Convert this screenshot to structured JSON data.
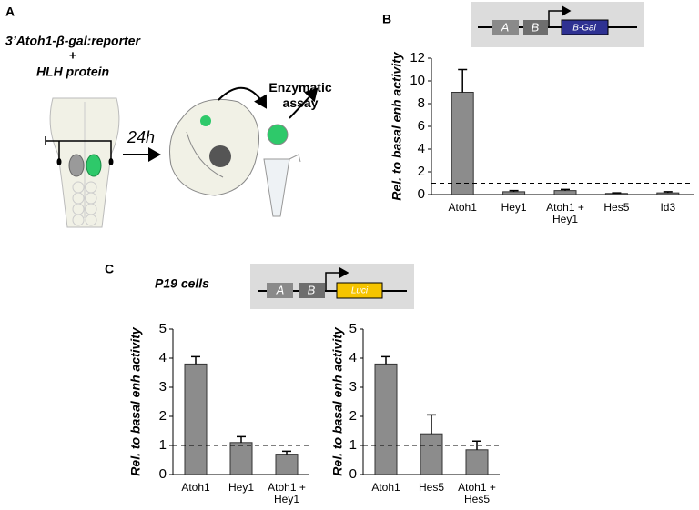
{
  "figure": {
    "panel_a": "A",
    "reporter": "3’Atoh1-β-gal:reporter",
    "plus": "+",
    "protein": "HLH protein",
    "time": "24h",
    "assay": "Enzymatic\nassay",
    "panel_b": "B",
    "panel_c": "C",
    "cells": "P19 cells",
    "construct_b": {
      "a": "A",
      "b": "B",
      "gene": "B-Gal"
    },
    "construct_c": {
      "a": "A",
      "b": "B",
      "gene": "Luci"
    }
  },
  "chart_data": [
    {
      "type": "bar",
      "y_label": "Rel.  to basal enh activity",
      "categories": [
        "Atoh1",
        "Hey1",
        "Atoh1 +\nHey1",
        "Hes5",
        "Id3"
      ],
      "values": [
        9,
        0.25,
        0.35,
        0.1,
        0.15
      ],
      "errors": [
        2,
        0.1,
        0.1,
        0.05,
        0.1
      ],
      "color": "#8c8c8c",
      "ylim": [
        0,
        12
      ],
      "yticks": [
        0,
        2,
        4,
        6,
        8,
        10,
        12
      ],
      "hline": 1
    },
    {
      "type": "bar",
      "y_label": "Rel.  to basal enh activity",
      "categories": [
        "Atoh1",
        "Hey1",
        "Atoh1 +\nHey1"
      ],
      "values": [
        3.8,
        1.1,
        0.7
      ],
      "errors": [
        0.25,
        0.2,
        0.1
      ],
      "color": "#8c8c8c",
      "ylim": [
        0,
        5
      ],
      "yticks": [
        0,
        1,
        2,
        3,
        4,
        5
      ],
      "hline": 1
    },
    {
      "type": "bar",
      "y_label": "Rel.  to basal enh activity",
      "categories": [
        "Atoh1",
        "Hes5",
        "Atoh1 +\nHes5"
      ],
      "values": [
        3.8,
        1.4,
        0.85
      ],
      "errors": [
        0.25,
        0.65,
        0.3
      ],
      "color": "#8c8c8c",
      "ylim": [
        0,
        5
      ],
      "yticks": [
        0,
        1,
        2,
        3,
        4,
        5
      ],
      "hline": 1
    }
  ]
}
